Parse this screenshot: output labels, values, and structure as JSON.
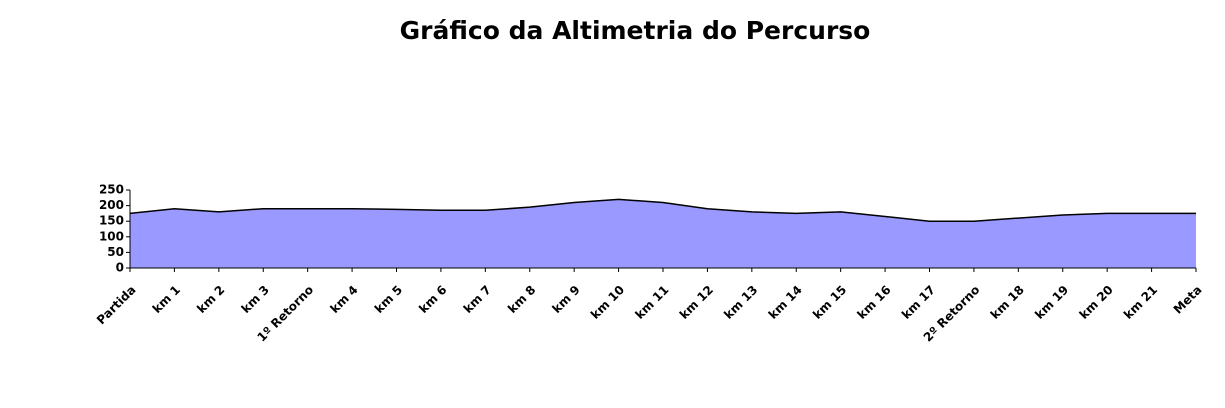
{
  "chart_data": {
    "type": "area",
    "title": "Gráfico da Altimetria do Percurso",
    "categories": [
      "Partida",
      "km 1",
      "km 2",
      "km 3",
      "1º Retorno",
      "km 4",
      "km 5",
      "km 6",
      "km 7",
      "km 8",
      "km 9",
      "km 10",
      "km 11",
      "km 12",
      "km 13",
      "km 14",
      "km 15",
      "km 16",
      "km 17",
      "2º Retorno",
      "km 18",
      "km 19",
      "km 20",
      "km 21",
      "Meta"
    ],
    "values": [
      175,
      190,
      180,
      190,
      190,
      190,
      188,
      185,
      185,
      195,
      210,
      220,
      210,
      190,
      180,
      175,
      180,
      165,
      150,
      150,
      160,
      170,
      175,
      175,
      175
    ],
    "color": "#9999ff",
    "ylim": [
      0,
      250
    ],
    "yticks": [
      0,
      50,
      100,
      150,
      200,
      250
    ]
  }
}
